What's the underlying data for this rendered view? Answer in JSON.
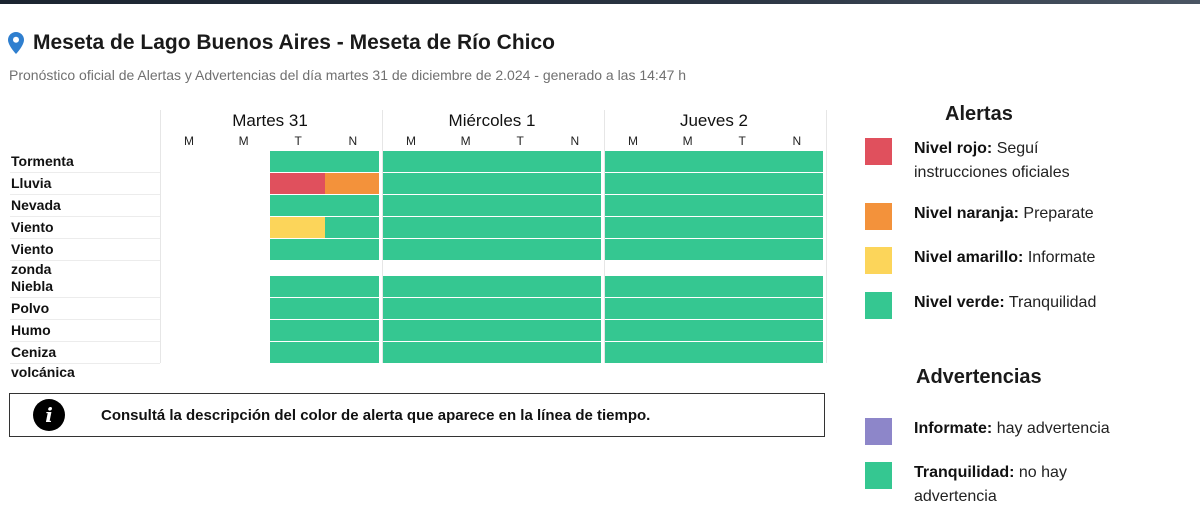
{
  "header": {
    "title": "Meseta de Lago Buenos Aires - Meseta de Río Chico",
    "subtitle": "Pronóstico oficial de Alertas y Advertencias del día martes 31 de diciembre de 2.024 - generado a las 14:47 h"
  },
  "grid": {
    "days": [
      "Martes 31",
      "Miércoles 1",
      "Jueves 2"
    ],
    "periods": [
      "M",
      "M",
      "T",
      "N"
    ],
    "rows": [
      {
        "label": "Tormenta",
        "cells": [
          "none",
          "none",
          "green",
          "green",
          "green",
          "green",
          "green",
          "green",
          "green",
          "green",
          "green",
          "green"
        ]
      },
      {
        "label": "Lluvia",
        "cells": [
          "none",
          "none",
          "red",
          "orange",
          "green",
          "green",
          "green",
          "green",
          "green",
          "green",
          "green",
          "green"
        ]
      },
      {
        "label": "Nevada",
        "cells": [
          "none",
          "none",
          "green",
          "green",
          "green",
          "green",
          "green",
          "green",
          "green",
          "green",
          "green",
          "green"
        ]
      },
      {
        "label": "Viento",
        "cells": [
          "none",
          "none",
          "yellow",
          "green",
          "green",
          "green",
          "green",
          "green",
          "green",
          "green",
          "green",
          "green"
        ]
      },
      {
        "label": "Viento zonda",
        "cells": [
          "none",
          "none",
          "green",
          "green",
          "green",
          "green",
          "green",
          "green",
          "green",
          "green",
          "green",
          "green"
        ]
      },
      {
        "label": "Niebla",
        "cells": [
          "none",
          "none",
          "green",
          "green",
          "green",
          "green",
          "green",
          "green",
          "green",
          "green",
          "green",
          "green"
        ]
      },
      {
        "label": "Polvo",
        "cells": [
          "none",
          "none",
          "green",
          "green",
          "green",
          "green",
          "green",
          "green",
          "green",
          "green",
          "green",
          "green"
        ]
      },
      {
        "label": "Humo",
        "cells": [
          "none",
          "none",
          "green",
          "green",
          "green",
          "green",
          "green",
          "green",
          "green",
          "green",
          "green",
          "green"
        ]
      },
      {
        "label": "Ceniza volcánica",
        "cells": [
          "none",
          "none",
          "green",
          "green",
          "green",
          "green",
          "green",
          "green",
          "green",
          "green",
          "green",
          "green"
        ]
      }
    ]
  },
  "info": {
    "icon": "info-icon",
    "glyph": "i",
    "text": "Consultá la descripción del color de alerta que aparece en la línea de tiempo."
  },
  "legend": {
    "alertas_title": "Alertas",
    "alertas": [
      {
        "color": "#e0505d",
        "level": "Nivel rojo:",
        "desc": "Seguí instrucciones oficiales"
      },
      {
        "color": "#f3923b",
        "level": "Nivel naranja:",
        "desc": "Preparate"
      },
      {
        "color": "#fcd55a",
        "level": "Nivel amarillo:",
        "desc": "Informate"
      },
      {
        "color": "#35c791",
        "level": "Nivel verde:",
        "desc": "Tranquilidad"
      }
    ],
    "advertencias_title": "Advertencias",
    "advertencias": [
      {
        "color": "#8d86c9",
        "level": "Informate:",
        "desc": "hay advertencia"
      },
      {
        "color": "#35c791",
        "level": "Tranquilidad:",
        "desc": "no hay advertencia"
      }
    ]
  }
}
